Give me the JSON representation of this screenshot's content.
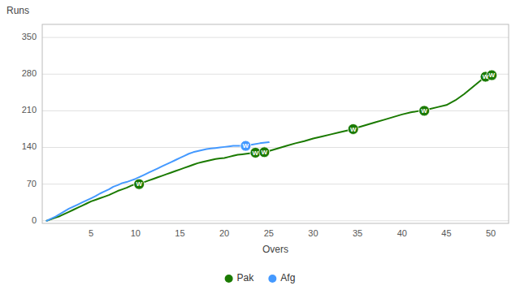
{
  "chart_data": {
    "type": "line",
    "xlabel": "Overs",
    "ylabel": "Runs",
    "xlim": [
      -0.5,
      52
    ],
    "ylim": [
      -5,
      375
    ],
    "xticks": [
      5,
      10,
      15,
      20,
      25,
      30,
      35,
      40,
      45,
      50
    ],
    "yticks": [
      0,
      70,
      140,
      210,
      280,
      350
    ],
    "grid": true,
    "legend": "bottom",
    "wicket_label": "W",
    "series": [
      {
        "name": "Pak",
        "color": "#1a7a00",
        "x": [
          0,
          0.5,
          1,
          1.5,
          2,
          2.5,
          3,
          3.5,
          4,
          4.5,
          5,
          5.5,
          6,
          6.5,
          7,
          7.5,
          8,
          8.5,
          9,
          9.5,
          10,
          10.4,
          11,
          11.5,
          12,
          12.5,
          13,
          13.5,
          14,
          14.5,
          15,
          15.5,
          16,
          16.5,
          17,
          17.5,
          18,
          18.5,
          19,
          19.5,
          20,
          20.5,
          21,
          21.5,
          22,
          22.5,
          23,
          23.5,
          24,
          24.5,
          25,
          26,
          27,
          28,
          29,
          30,
          31,
          32,
          33,
          34,
          34.5,
          35,
          36,
          37,
          38,
          39,
          40,
          41,
          42,
          42.5,
          43,
          44,
          45,
          46,
          47,
          48,
          49,
          49.4,
          50,
          50.1
        ],
        "values": [
          0,
          3,
          6,
          9,
          13,
          17,
          21,
          25,
          29,
          33,
          37,
          40,
          43,
          46,
          49,
          53,
          57,
          60,
          63,
          67,
          70,
          70,
          74,
          77,
          80,
          83,
          86,
          89,
          92,
          95,
          98,
          101,
          104,
          107,
          110,
          112,
          114,
          116,
          118,
          119,
          120,
          122,
          124,
          126,
          127,
          128,
          129,
          130,
          130,
          131,
          133,
          138,
          143,
          148,
          152,
          157,
          161,
          165,
          169,
          173,
          175,
          178,
          183,
          188,
          193,
          198,
          203,
          207,
          210,
          210,
          213,
          217,
          221,
          230,
          242,
          256,
          270,
          275,
          282,
          278
        ],
        "wickets": {
          "x": [
            10.4,
            23.5,
            24.5,
            34.5,
            42.5,
            49.4,
            50.1
          ],
          "values": [
            70,
            130,
            131,
            175,
            210,
            275,
            278
          ]
        }
      },
      {
        "name": "Afg",
        "color": "#4499ff",
        "x": [
          0,
          0.5,
          1,
          1.5,
          2,
          2.5,
          3,
          3.5,
          4,
          4.5,
          5,
          5.5,
          6,
          6.5,
          7,
          7.5,
          8,
          8.5,
          9,
          9.5,
          10,
          10.5,
          11,
          11.5,
          12,
          12.5,
          13,
          13.5,
          14,
          14.5,
          15,
          15.5,
          16,
          16.5,
          17,
          17.5,
          18,
          18.5,
          19,
          19.5,
          20,
          20.5,
          21,
          21.5,
          22,
          22.4,
          23,
          24,
          25
        ],
        "values": [
          0,
          4,
          8,
          13,
          18,
          23,
          27,
          31,
          35,
          39,
          43,
          47,
          52,
          56,
          60,
          65,
          68,
          72,
          74,
          77,
          80,
          84,
          88,
          92,
          96,
          100,
          104,
          108,
          112,
          116,
          120,
          124,
          128,
          131,
          133,
          135,
          137,
          138,
          139,
          140,
          141,
          142,
          143,
          143,
          143,
          143,
          145,
          148,
          150
        ],
        "wickets": {
          "x": [
            22.4
          ],
          "values": [
            143
          ]
        }
      }
    ]
  }
}
